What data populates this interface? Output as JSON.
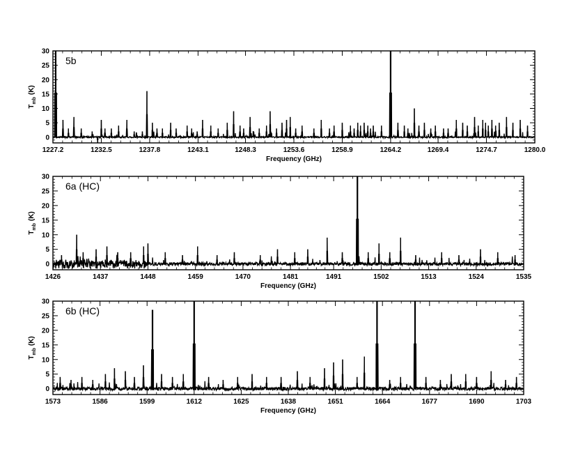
{
  "chart_data": [
    {
      "type": "line",
      "panel_label": "5b",
      "xlabel": "Frequency (GHz)",
      "ylabel": "T",
      "ylabel_sub": "mb",
      "ylabel_unit": "(K)",
      "xlim": [
        1227.2,
        1280.0
      ],
      "ylim": [
        -2,
        30
      ],
      "xticks": [
        1227.2,
        1232.5,
        1237.8,
        1243.1,
        1248.3,
        1253.6,
        1258.9,
        1264.2,
        1269.4,
        1274.7,
        1280.0
      ],
      "xtick_labels": [
        "1227.2",
        "1232.5",
        "1237.8",
        "1243.1",
        "1248.3",
        "1253.6",
        "1258.9",
        "1264.2",
        "1269.4",
        "1274.7",
        "1280.0"
      ],
      "yticks": [
        0,
        5,
        10,
        15,
        20,
        25,
        30
      ],
      "ytick_labels": [
        "0",
        "5",
        "10",
        "15",
        "20",
        "25",
        "30"
      ],
      "series": [
        {
          "color": "#000000",
          "x": [
            1227.5,
            1228.3,
            1228.9,
            1229.5,
            1230.3,
            1231.5,
            1232.1,
            1232.5,
            1232.9,
            1233.6,
            1234.4,
            1235.3,
            1236.1,
            1237.0,
            1237.5,
            1238.1,
            1238.6,
            1239.2,
            1240.1,
            1240.7,
            1241.9,
            1242.4,
            1243.0,
            1243.6,
            1244.5,
            1245.3,
            1246.3,
            1247.0,
            1247.7,
            1248.1,
            1248.8,
            1249.8,
            1250.6,
            1251.0,
            1251.7,
            1252.3,
            1252.8,
            1253.2,
            1253.8,
            1254.5,
            1255.8,
            1256.6,
            1257.5,
            1258.0,
            1258.9,
            1259.8,
            1260.2,
            1260.6,
            1260.9,
            1261.3,
            1261.7,
            1262.0,
            1262.3,
            1263.2,
            1264.2,
            1265.0,
            1265.7,
            1266.1,
            1266.8,
            1267.3,
            1267.9,
            1268.6,
            1269.1,
            1270.0,
            1270.5,
            1271.4,
            1272.1,
            1272.6,
            1273.4,
            1273.8,
            1274.3,
            1274.6,
            1274.9,
            1275.3,
            1275.7,
            1276.1,
            1276.9,
            1277.6,
            1278.4,
            1279.2
          ],
          "y": [
            31,
            6,
            3,
            7,
            3,
            2,
            -2,
            6,
            3,
            3,
            4,
            6,
            2,
            2,
            16,
            5,
            3,
            3,
            5,
            3,
            4,
            3,
            2,
            6,
            4,
            3,
            5,
            9,
            4,
            3,
            7,
            3,
            4,
            9,
            3,
            5,
            6,
            7,
            3,
            4,
            3,
            6,
            3,
            4,
            5,
            4,
            3,
            5,
            4,
            5,
            4,
            3,
            4,
            4,
            31,
            5,
            4,
            3,
            10,
            4,
            5,
            3,
            4,
            3,
            3,
            6,
            5,
            4,
            7,
            4,
            6,
            5,
            4,
            6,
            4,
            5,
            7,
            5,
            6,
            4
          ]
        }
      ]
    },
    {
      "type": "line",
      "panel_label": "6a (HC)",
      "xlabel": "Frequency (GHz)",
      "ylabel": "T",
      "ylabel_sub": "mb",
      "ylabel_unit": "(K)",
      "xlim": [
        1426,
        1535
      ],
      "ylim": [
        -2,
        30
      ],
      "xticks": [
        1426,
        1437,
        1448,
        1459,
        1470,
        1481,
        1491,
        1502,
        1513,
        1524,
        1535
      ],
      "xtick_labels": [
        "1426",
        "1437",
        "1448",
        "1459",
        "1470",
        "1481",
        "1491",
        "1502",
        "1513",
        "1524",
        "1535"
      ],
      "yticks": [
        0,
        5,
        10,
        15,
        20,
        25,
        30
      ],
      "ytick_labels": [
        "0",
        "5",
        "10",
        "15",
        "20",
        "25",
        "30"
      ],
      "series": [
        {
          "color": "#000000",
          "x": [
            1428,
            1431.5,
            1433,
            1436,
            1438.5,
            1441,
            1444,
            1447,
            1448,
            1452,
            1456,
            1459.5,
            1464,
            1468,
            1474,
            1478,
            1482,
            1485,
            1489.5,
            1493,
            1496.5,
            1499,
            1501.5,
            1504,
            1506.5,
            1510,
            1516,
            1520,
            1525,
            1529,
            1533
          ],
          "y": [
            3,
            10,
            4,
            5,
            6,
            4,
            4,
            6,
            7,
            4,
            3,
            6,
            3,
            4,
            3,
            5,
            4,
            5,
            9,
            4,
            31,
            4,
            7,
            4,
            9,
            3,
            4,
            3,
            5,
            4,
            3
          ]
        }
      ]
    },
    {
      "type": "line",
      "panel_label": "6b (HC)",
      "xlabel": "Frequency (GHz)",
      "ylabel": "T",
      "ylabel_sub": "mb",
      "ylabel_unit": "(K)",
      "xlim": [
        1573,
        1703
      ],
      "ylim": [
        -2,
        30
      ],
      "xticks": [
        1573,
        1586,
        1599,
        1612,
        1625,
        1638,
        1651,
        1664,
        1677,
        1690,
        1703
      ],
      "xtick_labels": [
        "1573",
        "1586",
        "1599",
        "1612",
        "1625",
        "1638",
        "1651",
        "1664",
        "1677",
        "1690",
        "1703"
      ],
      "yticks": [
        0,
        5,
        10,
        15,
        20,
        25,
        30
      ],
      "ytick_labels": [
        "0",
        "5",
        "10",
        "15",
        "20",
        "25",
        "30"
      ],
      "series": [
        {
          "color": "#000000",
          "x": [
            1575,
            1578,
            1581,
            1584,
            1587.5,
            1590,
            1593,
            1595.5,
            1598,
            1600.5,
            1603,
            1606,
            1609,
            1612,
            1616,
            1620,
            1624,
            1628,
            1632,
            1636,
            1640.5,
            1644,
            1648,
            1650.5,
            1653,
            1657,
            1659,
            1662.5,
            1666,
            1669,
            1673,
            1676,
            1680,
            1683,
            1687,
            1690,
            1694,
            1698,
            1701
          ],
          "y": [
            4,
            3,
            4,
            3,
            5,
            7,
            6,
            4,
            8,
            27,
            5,
            4,
            5,
            31,
            4,
            3,
            4,
            5,
            4,
            4,
            6,
            4,
            7,
            9,
            10,
            4,
            11,
            31,
            3,
            4,
            31,
            4,
            3,
            5,
            5,
            4,
            6,
            3,
            4
          ]
        }
      ]
    }
  ]
}
